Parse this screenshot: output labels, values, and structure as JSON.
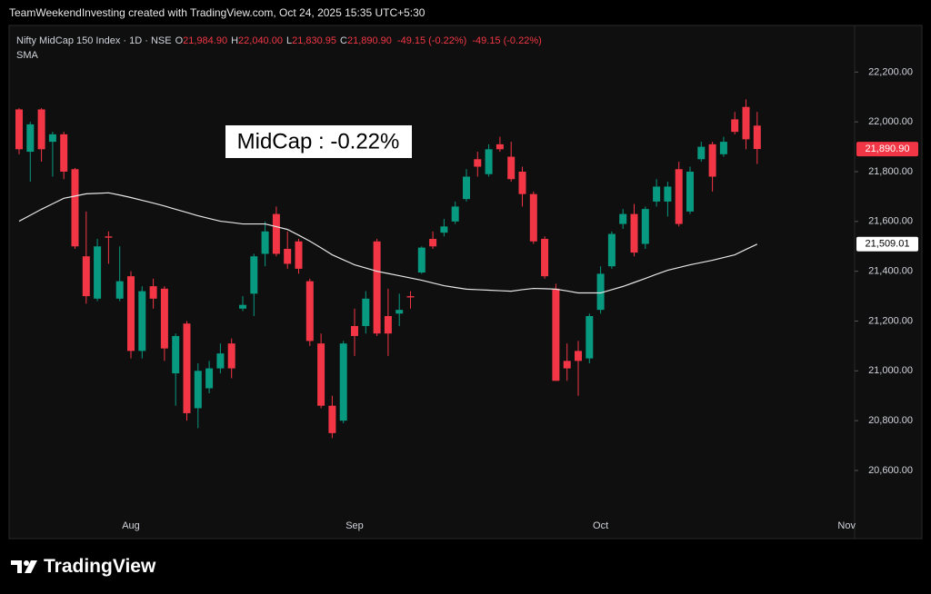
{
  "header": "TeamWeekendInvesting created with TradingView.com, Oct 24, 2025 15:35 UTC+5:30",
  "footer_logo": "TradingView",
  "chart_data": {
    "type": "candlestick",
    "legend": {
      "symbol": "Nifty MidCap 150 Index · 1D · NSE",
      "fields": [
        {
          "key": "O",
          "value": "21,984.90"
        },
        {
          "key": "H",
          "value": "22,040.00"
        },
        {
          "key": "L",
          "value": "21,830.95"
        },
        {
          "key": "C",
          "value": "21,890.90"
        }
      ],
      "change": [
        "-49.15 (-0.22%)",
        "-49.15 (-0.22%)"
      ]
    },
    "annotation": "MidCap : -0.22%",
    "categories": [
      null,
      null,
      null,
      null,
      null,
      null,
      null,
      null,
      null,
      null,
      "Aug",
      null,
      null,
      null,
      null,
      null,
      null,
      null,
      null,
      null,
      null,
      null,
      null,
      null,
      null,
      null,
      null,
      null,
      null,
      null,
      "Sep",
      null,
      null,
      null,
      null,
      null,
      null,
      null,
      null,
      null,
      null,
      null,
      null,
      null,
      null,
      null,
      null,
      null,
      null,
      null,
      null,
      null,
      "Oct",
      null,
      null,
      null,
      null,
      null,
      null,
      null,
      null,
      null,
      null,
      null,
      null,
      null,
      null,
      null,
      null,
      null,
      null,
      null,
      null,
      null,
      "Nov"
    ],
    "open": [
      22050,
      21880,
      22050,
      21920,
      21950,
      21810,
      21460,
      21290,
      21540,
      21290,
      21380,
      21080,
      21340,
      21330,
      20990,
      21190,
      20850,
      20930,
      21010,
      21110,
      21250,
      21310,
      21470,
      21630,
      21490,
      21520,
      21360,
      21110,
      20860,
      20800,
      21180,
      21180,
      21520,
      21220,
      21230,
      21300,
      21395,
      21530,
      21555,
      21600,
      21690,
      21850,
      21790,
      21910,
      21860,
      21800,
      21710,
      21530,
      21330,
      21040,
      21080,
      21050,
      21245,
      21420,
      21590,
      21630,
      21510,
      21680,
      21680,
      21810,
      21640,
      21850,
      21910,
      21870,
      22010,
      22060,
      21984.9,
      null,
      null,
      null,
      null,
      null,
      null,
      null,
      null
    ],
    "high": [
      22055,
      22000,
      22055,
      21960,
      21960,
      21815,
      21640,
      21530,
      21560,
      21500,
      21400,
      21340,
      21370,
      21340,
      21150,
      21200,
      21030,
      21040,
      21110,
      21130,
      21300,
      21470,
      21600,
      21660,
      21560,
      21530,
      21370,
      21150,
      20900,
      21120,
      21250,
      21320,
      21530,
      21330,
      21310,
      21320,
      21500,
      21560,
      21610,
      21680,
      21810,
      21880,
      21910,
      21940,
      21920,
      21820,
      21720,
      21540,
      21350,
      21110,
      21120,
      21230,
      21420,
      21560,
      21650,
      21670,
      21660,
      21770,
      21760,
      21840,
      21820,
      21920,
      21920,
      21940,
      22040,
      22090,
      22040,
      null,
      null,
      null,
      null,
      null,
      null,
      null,
      null
    ],
    "low": [
      21870,
      21760,
      21840,
      21780,
      21770,
      21490,
      21270,
      21280,
      21430,
      21280,
      21050,
      21050,
      21250,
      21040,
      20860,
      20800,
      20770,
      20910,
      20990,
      20970,
      21240,
      21220,
      21420,
      21460,
      21410,
      21390,
      21100,
      20850,
      20730,
      20790,
      21060,
      21150,
      21140,
      21060,
      21180,
      21250,
      21390,
      21490,
      21540,
      21590,
      21680,
      21780,
      21780,
      21880,
      21760,
      21660,
      21510,
      21370,
      20960,
      20960,
      20900,
      21030,
      21230,
      21410,
      21570,
      21460,
      21490,
      21660,
      21620,
      21580,
      21630,
      21840,
      21720,
      21860,
      21950,
      21890,
      21830.95,
      null,
      null,
      null,
      null,
      null,
      null,
      null,
      null
    ],
    "close": [
      21890,
      21990,
      21890,
      21950,
      21800,
      21500,
      21300,
      21500,
      21535,
      21360,
      21080,
      21320,
      21290,
      21090,
      21140,
      20830,
      21000,
      21010,
      21070,
      21010,
      21265,
      21460,
      21560,
      21470,
      21430,
      21410,
      21120,
      20860,
      20750,
      21110,
      21140,
      21290,
      21150,
      21150,
      21245,
      21295,
      21495,
      21500,
      21580,
      21660,
      21780,
      21820,
      21890,
      21890,
      21770,
      21710,
      21520,
      21380,
      20960,
      21010,
      21040,
      21220,
      21390,
      21550,
      21630,
      21475,
      21650,
      21740,
      21740,
      21590,
      21800,
      21900,
      21780,
      21920,
      21960,
      21930,
      21890.9,
      null,
      null,
      null,
      null,
      null,
      null,
      null,
      null
    ],
    "up_color": "#089981",
    "down_color": "#f23645",
    "series": [
      {
        "name": "SMA",
        "color": "#e6e6e6",
        "values": [
          21601,
          21625,
          21649,
          21671,
          21693,
          21702,
          21711,
          21713,
          21715,
          21706,
          21696,
          21685,
          21674,
          21662,
          21649,
          21636,
          21623,
          21612,
          21601,
          21596,
          21590,
          21590,
          21590,
          21579,
          21568,
          21545,
          21521,
          21494,
          21466,
          21446,
          21426,
          21413,
          21400,
          21391,
          21382,
          21373,
          21364,
          21353,
          21342,
          21335,
          21328,
          21326,
          21324,
          21322,
          21320,
          21326,
          21331,
          21330,
          21328,
          21321,
          21313,
          21313,
          21313,
          21326,
          21339,
          21355,
          21371,
          21388,
          21404,
          21415,
          21426,
          21435,
          21444,
          21455,
          21466,
          21488,
          21509.01,
          null,
          null,
          null,
          null,
          null,
          null,
          null,
          null
        ]
      }
    ],
    "price_badges": [
      {
        "value": 21890.9,
        "label": "21,890.90",
        "color": "#f23645"
      },
      {
        "value": 21509.01,
        "label": "21,509.01",
        "color": "#ffffff"
      }
    ],
    "ylim": [
      20330,
      22380
    ],
    "yticks": [
      {
        "value": 20600,
        "label": "20,600.00"
      },
      {
        "value": 20800,
        "label": "20,800.00"
      },
      {
        "value": 21000,
        "label": "21,000.00"
      },
      {
        "value": 21200,
        "label": "21,200.00"
      },
      {
        "value": 21400,
        "label": "21,400.00"
      },
      {
        "value": 21600,
        "label": "21,600.00"
      },
      {
        "value": 21800,
        "label": "21,800.00"
      },
      {
        "value": 22000,
        "label": "22,000.00"
      },
      {
        "value": 22200,
        "label": "22,200.00"
      }
    ],
    "grid": false
  }
}
